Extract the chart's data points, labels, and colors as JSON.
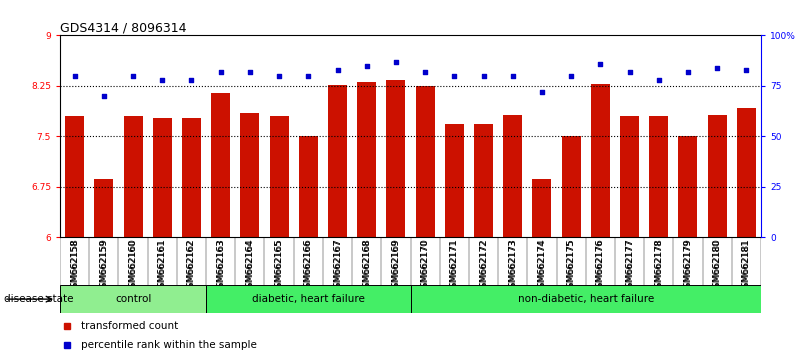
{
  "title": "GDS4314 / 8096314",
  "samples": [
    "GSM662158",
    "GSM662159",
    "GSM662160",
    "GSM662161",
    "GSM662162",
    "GSM662163",
    "GSM662164",
    "GSM662165",
    "GSM662166",
    "GSM662167",
    "GSM662168",
    "GSM662169",
    "GSM662170",
    "GSM662171",
    "GSM662172",
    "GSM662173",
    "GSM662174",
    "GSM662175",
    "GSM662176",
    "GSM662177",
    "GSM662178",
    "GSM662179",
    "GSM662180",
    "GSM662181"
  ],
  "bar_values": [
    7.8,
    6.87,
    7.8,
    7.77,
    7.77,
    8.15,
    7.85,
    7.8,
    7.5,
    8.26,
    8.3,
    8.34,
    8.25,
    7.68,
    7.68,
    7.82,
    6.87,
    7.5,
    8.28,
    7.8,
    7.8,
    7.5,
    7.82,
    7.92
  ],
  "dot_values": [
    80,
    70,
    80,
    78,
    78,
    82,
    82,
    80,
    80,
    83,
    85,
    87,
    82,
    80,
    80,
    80,
    72,
    80,
    86,
    82,
    78,
    82,
    84,
    83
  ],
  "ylim_left": [
    6.0,
    9.0
  ],
  "ylim_right": [
    0,
    100
  ],
  "yticks_left": [
    6.0,
    6.75,
    7.5,
    8.25,
    9.0
  ],
  "ytick_labels_left": [
    "6",
    "6.75",
    "7.5",
    "8.25",
    "9"
  ],
  "yticks_right": [
    0,
    25,
    50,
    75,
    100
  ],
  "ytick_labels_right": [
    "0",
    "25",
    "50",
    "75",
    "100%"
  ],
  "hlines": [
    6.75,
    7.5,
    8.25
  ],
  "bar_color": "#CC1100",
  "dot_color": "#0000CC",
  "bar_width": 0.65,
  "legend_items": [
    {
      "label": "transformed count",
      "color": "#CC1100"
    },
    {
      "label": "percentile rank within the sample",
      "color": "#0000CC"
    }
  ],
  "disease_state_label": "disease state",
  "group_defs": [
    {
      "start": 0,
      "end": 5,
      "color": "#90EE90",
      "label": "control"
    },
    {
      "start": 5,
      "end": 12,
      "color": "#44EE66",
      "label": "diabetic, heart failure"
    },
    {
      "start": 12,
      "end": 24,
      "color": "#44EE66",
      "label": "non-diabetic, heart failure"
    }
  ],
  "title_fontsize": 9,
  "tick_fontsize": 6.5,
  "label_fontsize": 7.5,
  "group_fontsize": 7.5
}
